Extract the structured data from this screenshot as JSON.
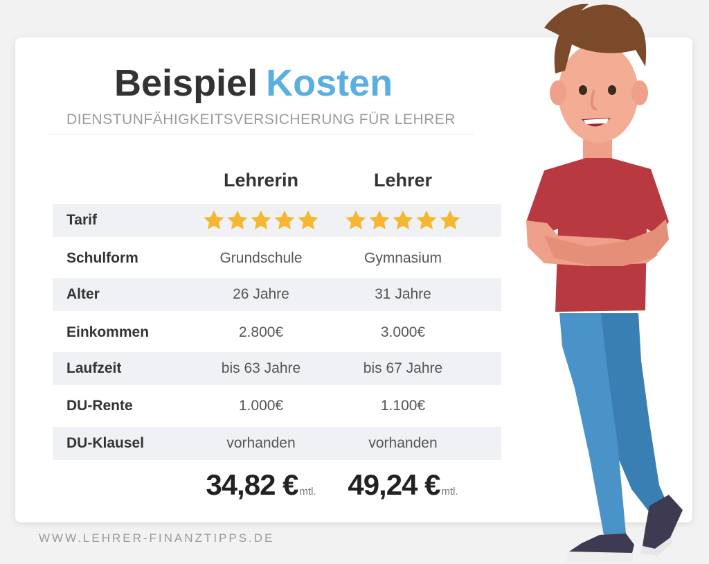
{
  "header": {
    "title_part1": "Beispiel",
    "title_part2": "Kosten",
    "subtitle": "DIENSTUNFÄHIGKEITSVERSICHERUNG FÜR LEHRER"
  },
  "columns": [
    "Lehrerin",
    "Lehrer"
  ],
  "tarif": {
    "label": "Tarif",
    "rating": [
      5,
      5
    ],
    "max_rating": 5
  },
  "rows": [
    {
      "label": "Schulform",
      "values": [
        "Grundschule",
        "Gymnasium"
      ]
    },
    {
      "label": "Alter",
      "values": [
        "26 Jahre",
        "31 Jahre"
      ]
    },
    {
      "label": "Einkommen",
      "values": [
        "2.800€",
        "3.000€"
      ]
    },
    {
      "label": "Laufzeit",
      "values": [
        "bis 63 Jahre",
        "bis 67 Jahre"
      ]
    },
    {
      "label": "DU-Rente",
      "values": [
        "1.000€",
        "1.100€"
      ]
    },
    {
      "label": "DU-Klausel",
      "values": [
        "vorhanden",
        "vorhanden"
      ]
    }
  ],
  "prices": [
    {
      "amount": "34,82 €",
      "unit": "mtl."
    },
    {
      "amount": "49,24 €",
      "unit": "mtl."
    }
  ],
  "footer": {
    "url": "WWW.LEHRER-FINANZTIPPS.DE"
  },
  "colors": {
    "accent_blue": "#5aaee0",
    "star": "#f5b731",
    "row_shade": "#eff1f5",
    "text_dark": "#333333"
  },
  "illustration": {
    "icon": "teacher-illustration"
  }
}
